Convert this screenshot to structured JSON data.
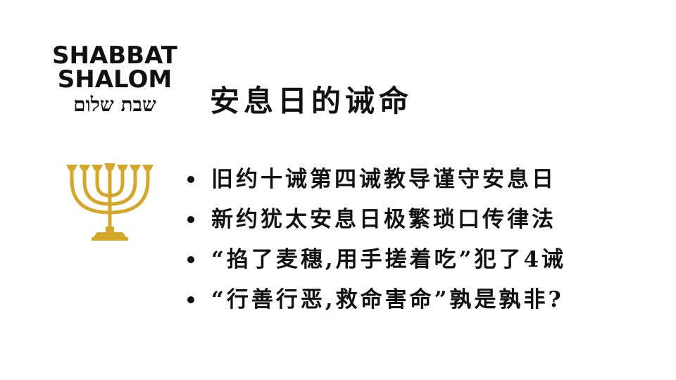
{
  "logo": {
    "line1": "SHABBAT",
    "line2": "SHALOM",
    "hebrew": "שבת שלום"
  },
  "title": "安息日的诫命",
  "bullets": [
    {
      "text": "旧约十诫第四诫教导谨守安息日"
    },
    {
      "text": "新约犹太安息日极繁琐口传律法"
    },
    {
      "text": "“掐了麦穗,用手搓着吃”犯了4诫"
    },
    {
      "text": "“行善行恶,救命害命”孰是孰非?"
    }
  ],
  "colors": {
    "text": "#111111",
    "menorah": "#D4A62A",
    "background": "#FFFFFF"
  },
  "icons": {
    "menorah": "menorah-icon",
    "bullet": "bullet-dot"
  }
}
